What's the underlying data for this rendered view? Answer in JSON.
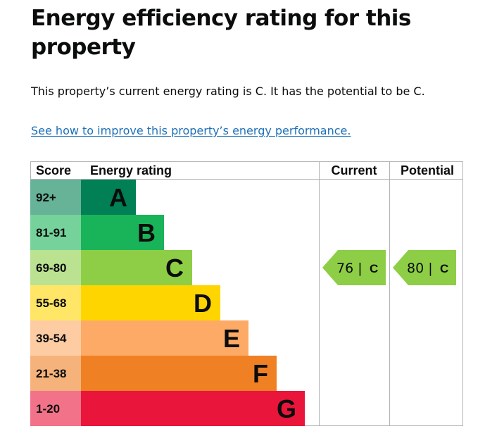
{
  "page": {
    "title": "Energy efficiency rating for this property",
    "summary": "This property’s current energy rating is C. It has the potential to be C.",
    "improve_link": "See how to improve this property’s energy performance."
  },
  "table": {
    "headers": {
      "score": "Score",
      "rating": "Energy rating",
      "current": "Current",
      "potential": "Potential"
    },
    "bands": [
      {
        "score": "92+",
        "letter": "A",
        "color": "#008054",
        "score_bg": "#66b398"
      },
      {
        "score": "81-91",
        "letter": "B",
        "color": "#19b459",
        "score_bg": "#75d29b"
      },
      {
        "score": "69-80",
        "letter": "C",
        "color": "#8dce46",
        "score_bg": "#bbe290"
      },
      {
        "score": "55-68",
        "letter": "D",
        "color": "#ffd500",
        "score_bg": "#ffe666"
      },
      {
        "score": "39-54",
        "letter": "E",
        "color": "#fcaa65",
        "score_bg": "#fdcca3"
      },
      {
        "score": "21-38",
        "letter": "F",
        "color": "#ef8023",
        "score_bg": "#f5b37b"
      },
      {
        "score": "1-20",
        "letter": "G",
        "color": "#e9153b",
        "score_bg": "#f27389"
      }
    ],
    "current": {
      "score": "76 |",
      "letter": "C",
      "color": "#8dce46"
    },
    "potential": {
      "score": "80 |",
      "letter": "C",
      "color": "#8dce46"
    }
  }
}
